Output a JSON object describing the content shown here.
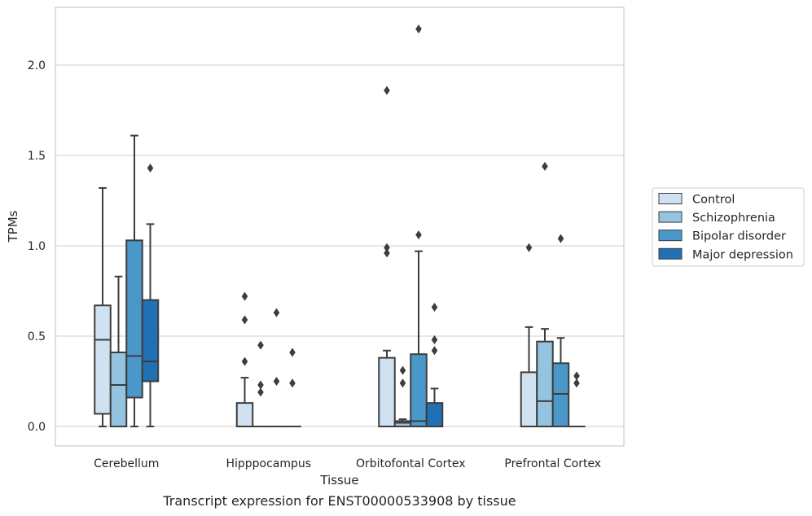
{
  "caption": "Transcript expression for ENST00000533908 by tissue",
  "chart_data": {
    "type": "box",
    "xlabel": "Tissue",
    "ylabel": "TPMs",
    "ylim": [
      -0.1,
      2.33
    ],
    "yticks": [
      0.0,
      0.5,
      1.0,
      1.5,
      2.0
    ],
    "ytick_labels": [
      "0.0",
      "0.5",
      "1.0",
      "1.5",
      "2.0"
    ],
    "grid": "horizontal",
    "legend_position": "right",
    "categories": [
      "Cerebellum",
      "Hipppocampus",
      "Orbitofontal Cortex",
      "Prefrontal Cortex"
    ],
    "series": [
      {
        "name": "Control",
        "color": "#d0e1f2",
        "boxes": [
          {
            "q1": 0.07,
            "median": 0.48,
            "q3": 0.67,
            "whisker_low": 0.0,
            "whisker_high": 1.32,
            "outliers": []
          },
          {
            "q1": 0.0,
            "median": 0.0,
            "q3": 0.13,
            "whisker_low": 0.0,
            "whisker_high": 0.27,
            "outliers": [
              0.72,
              0.59,
              0.36
            ]
          },
          {
            "q1": 0.0,
            "median": 0.0,
            "q3": 0.38,
            "whisker_low": 0.0,
            "whisker_high": 0.42,
            "outliers": [
              1.86,
              0.99,
              0.96
            ]
          },
          {
            "q1": 0.0,
            "median": 0.0,
            "q3": 0.3,
            "whisker_low": 0.0,
            "whisker_high": 0.55,
            "outliers": [
              0.99
            ]
          }
        ]
      },
      {
        "name": "Schizophrenia",
        "color": "#94c4df",
        "boxes": [
          {
            "q1": 0.0,
            "median": 0.23,
            "q3": 0.41,
            "whisker_low": 0.0,
            "whisker_high": 0.83,
            "outliers": []
          },
          {
            "q1": 0.0,
            "median": 0.0,
            "q3": 0.0,
            "whisker_low": 0.0,
            "whisker_high": 0.0,
            "outliers": [
              0.45,
              0.23,
              0.19
            ]
          },
          {
            "q1": 0.0,
            "median": 0.02,
            "q3": 0.03,
            "whisker_low": 0.0,
            "whisker_high": 0.04,
            "outliers": [
              0.31,
              0.24
            ]
          },
          {
            "q1": 0.0,
            "median": 0.14,
            "q3": 0.47,
            "whisker_low": 0.0,
            "whisker_high": 0.54,
            "outliers": [
              1.44
            ]
          }
        ]
      },
      {
        "name": "Bipolar disorder",
        "color": "#4a98c9",
        "boxes": [
          {
            "q1": 0.16,
            "median": 0.39,
            "q3": 1.03,
            "whisker_low": 0.0,
            "whisker_high": 1.61,
            "outliers": []
          },
          {
            "q1": 0.0,
            "median": 0.0,
            "q3": 0.0,
            "whisker_low": 0.0,
            "whisker_high": 0.0,
            "outliers": [
              0.63,
              0.25
            ]
          },
          {
            "q1": 0.0,
            "median": 0.03,
            "q3": 0.4,
            "whisker_low": 0.0,
            "whisker_high": 0.97,
            "outliers": [
              2.2,
              1.06
            ]
          },
          {
            "q1": 0.0,
            "median": 0.18,
            "q3": 0.35,
            "whisker_low": 0.0,
            "whisker_high": 0.49,
            "outliers": [
              1.04
            ]
          }
        ]
      },
      {
        "name": "Major depression",
        "color": "#2070b4",
        "boxes": [
          {
            "q1": 0.25,
            "median": 0.36,
            "q3": 0.7,
            "whisker_low": 0.0,
            "whisker_high": 1.12,
            "outliers": [
              1.43
            ]
          },
          {
            "q1": 0.0,
            "median": 0.0,
            "q3": 0.0,
            "whisker_low": 0.0,
            "whisker_high": 0.0,
            "outliers": [
              0.41,
              0.24
            ]
          },
          {
            "q1": 0.0,
            "median": 0.0,
            "q3": 0.13,
            "whisker_low": 0.0,
            "whisker_high": 0.21,
            "outliers": [
              0.66,
              0.48,
              0.42
            ]
          },
          {
            "q1": 0.0,
            "median": 0.0,
            "q3": 0.0,
            "whisker_low": 0.0,
            "whisker_high": 0.0,
            "outliers": [
              0.28,
              0.24
            ]
          }
        ]
      }
    ]
  }
}
